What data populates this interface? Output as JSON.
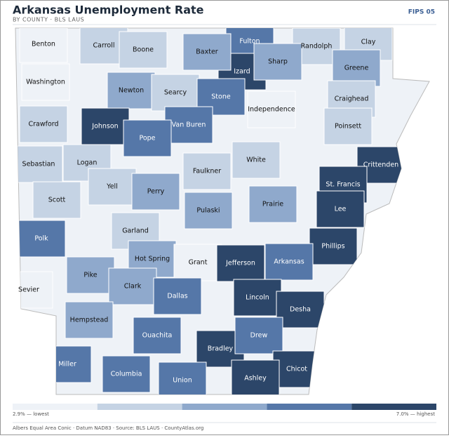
{
  "header": {
    "title": "Arkansas Unemployment Rate",
    "subtitle": "BY COUNTY · BLS LAUS",
    "badge": "FIPS 05"
  },
  "map": {
    "counties": [
      {
        "name": "Benton",
        "color": "#eef2f7"
      },
      {
        "name": "Carroll",
        "color": "#c5d3e4"
      },
      {
        "name": "Boone",
        "color": "#c5d3e4"
      },
      {
        "name": "Fulton",
        "color": "#5577a8"
      },
      {
        "name": "Izard",
        "color": "#2c4669"
      },
      {
        "name": "Baxter",
        "color": "#8fa9cc"
      },
      {
        "name": "Randolph",
        "color": "#c5d3e4"
      },
      {
        "name": "Clay",
        "color": "#c5d3e4"
      },
      {
        "name": "Washington",
        "color": "#eef2f7"
      },
      {
        "name": "Sharp",
        "color": "#8fa9cc"
      },
      {
        "name": "Greene",
        "color": "#8fa9cc"
      },
      {
        "name": "Newton",
        "color": "#8fa9cc"
      },
      {
        "name": "Searcy",
        "color": "#c5d3e4"
      },
      {
        "name": "Stone",
        "color": "#5577a8"
      },
      {
        "name": "Independence",
        "color": "#eef2f7"
      },
      {
        "name": "Craighead",
        "color": "#c5d3e4"
      },
      {
        "name": "Crawford",
        "color": "#c5d3e4"
      },
      {
        "name": "Johnson",
        "color": "#2c4669"
      },
      {
        "name": "Van Buren",
        "color": "#5577a8"
      },
      {
        "name": "Poinsett",
        "color": "#c5d3e4"
      },
      {
        "name": "Pope",
        "color": "#5577a8"
      },
      {
        "name": "Sebastian",
        "color": "#c5d3e4"
      },
      {
        "name": "Logan",
        "color": "#c5d3e4"
      },
      {
        "name": "Faulkner",
        "color": "#c5d3e4"
      },
      {
        "name": "White",
        "color": "#c5d3e4"
      },
      {
        "name": "Crittenden",
        "color": "#2c4669"
      },
      {
        "name": "St. Francis",
        "color": "#2c4669"
      },
      {
        "name": "Yell",
        "color": "#c5d3e4"
      },
      {
        "name": "Perry",
        "color": "#8fa9cc"
      },
      {
        "name": "Scott",
        "color": "#c5d3e4"
      },
      {
        "name": "Pulaski",
        "color": "#8fa9cc"
      },
      {
        "name": "Prairie",
        "color": "#8fa9cc"
      },
      {
        "name": "Lee",
        "color": "#2c4669"
      },
      {
        "name": "Polk",
        "color": "#5577a8"
      },
      {
        "name": "Garland",
        "color": "#c5d3e4"
      },
      {
        "name": "Phillips",
        "color": "#2c4669"
      },
      {
        "name": "Hot Spring",
        "color": "#8fa9cc"
      },
      {
        "name": "Grant",
        "color": "#eef2f7"
      },
      {
        "name": "Jefferson",
        "color": "#2c4669"
      },
      {
        "name": "Arkansas",
        "color": "#5577a8"
      },
      {
        "name": "Pike",
        "color": "#8fa9cc"
      },
      {
        "name": "Sevier",
        "color": "#eef2f7"
      },
      {
        "name": "Clark",
        "color": "#8fa9cc"
      },
      {
        "name": "Dallas",
        "color": "#5577a8"
      },
      {
        "name": "Lincoln",
        "color": "#2c4669"
      },
      {
        "name": "Desha",
        "color": "#2c4669"
      },
      {
        "name": "Hempstead",
        "color": "#8fa9cc"
      },
      {
        "name": "Ouachita",
        "color": "#5577a8"
      },
      {
        "name": "Bradley",
        "color": "#2c4669"
      },
      {
        "name": "Drew",
        "color": "#5577a8"
      },
      {
        "name": "Miller",
        "color": "#5577a8"
      },
      {
        "name": "Columbia",
        "color": "#5577a8"
      },
      {
        "name": "Union",
        "color": "#5577a8"
      },
      {
        "name": "Chicot",
        "color": "#2c4669"
      },
      {
        "name": "Ashley",
        "color": "#2c4669"
      }
    ]
  },
  "legend": {
    "colors": [
      "#eef2f7",
      "#c5d3e4",
      "#8fa9cc",
      "#5577a8",
      "#2c4669"
    ],
    "low_label": "2.9% — lowest",
    "high_label": "7.0% — highest"
  },
  "footer": {
    "note": "Albers Equal Area Conic · Datum NAD83 · Source: BLS LAUS · CountyAtlas.org"
  }
}
